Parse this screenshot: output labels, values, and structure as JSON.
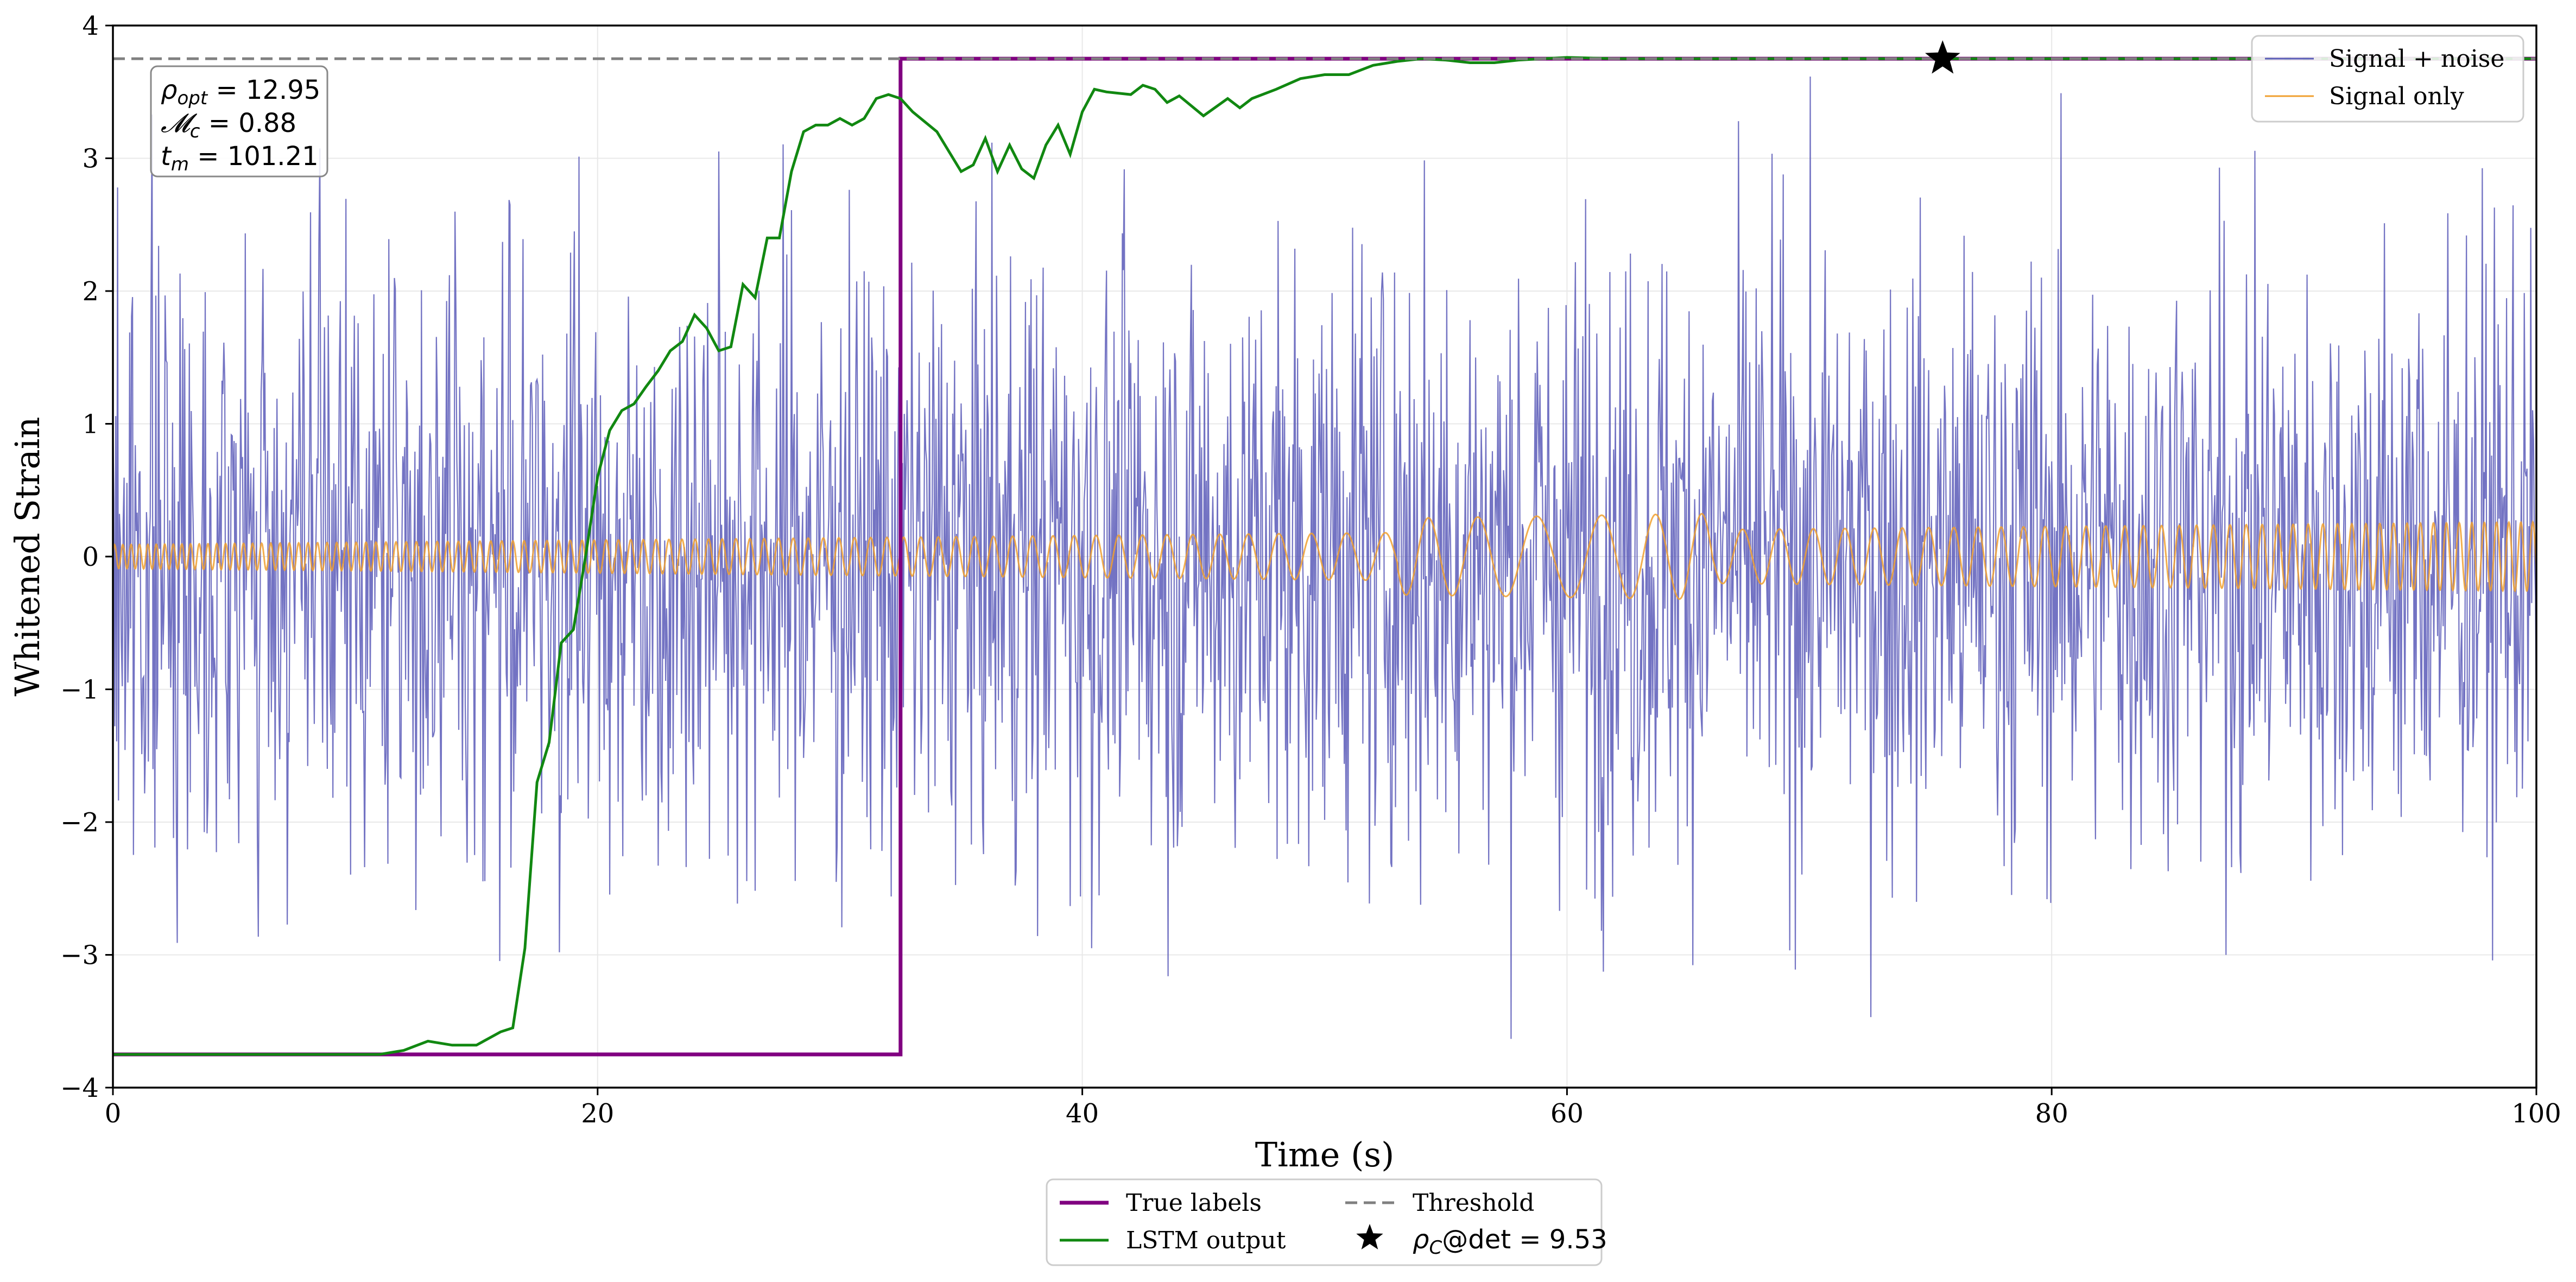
{
  "chart_data": {
    "type": "line",
    "xlabel": "Time (s)",
    "ylabel": "Whitened Strain",
    "xlim": [
      0,
      100
    ],
    "ylim": [
      -4,
      4
    ],
    "grid": true,
    "xticks": [
      0,
      20,
      40,
      60,
      80,
      100
    ],
    "xtick_labels": [
      "0",
      "20",
      "40",
      "60",
      "80",
      "100"
    ],
    "yticks": [
      -4,
      -3,
      -2,
      -1,
      0,
      1,
      2,
      3,
      4
    ],
    "ytick_labels": [
      "−4",
      "−3",
      "−2",
      "−1",
      "0",
      "1",
      "2",
      "3",
      "4"
    ],
    "threshold": 3.75,
    "true_labels": {
      "low": -3.75,
      "high": 3.75,
      "switch_time": 32.5
    },
    "detection_marker": {
      "x": 75.5,
      "y": 3.75,
      "label_prefix": "ρ",
      "label_sub": "C",
      "label_suffix": "@det = 9.53"
    },
    "annotation": {
      "rho_sym": "ρ",
      "rho_sub": "opt",
      "rho_val": " = 12.95",
      "mc_sym": "𝓜",
      "mc_sub": "c",
      "mc_val": " = 0.88",
      "tm_sym": "t",
      "tm_sub": "m",
      "tm_val": " = 101.21"
    },
    "series": [
      {
        "name": "Signal + noise",
        "color": "#5b5bb8",
        "kind": "noise",
        "amplitude": 1.15,
        "n": 2600,
        "seed": 7
      },
      {
        "name": "Signal only",
        "color": "#f0a030",
        "kind": "chirp",
        "amplitude_start": 0.09,
        "amplitude_end": 0.26
      },
      {
        "name": "True labels",
        "color": "#800080"
      },
      {
        "name": "LSTM output",
        "color": "#118811",
        "x": [
          0,
          11,
          12,
          13,
          14,
          15,
          16,
          16.5,
          17,
          17.5,
          18,
          18.5,
          19,
          19.5,
          20,
          20.5,
          21,
          21.5,
          22,
          22.5,
          23,
          23.5,
          24,
          24.5,
          25,
          25.5,
          26,
          26.5,
          27,
          27.5,
          28,
          28.5,
          29,
          29.5,
          30,
          30.5,
          31,
          31.5,
          32,
          32.5,
          33,
          34,
          35,
          35.5,
          36,
          36.5,
          37,
          37.5,
          38,
          38.5,
          39,
          39.5,
          40,
          40.5,
          41,
          42,
          42.5,
          43,
          43.5,
          44,
          45,
          46,
          46.5,
          47,
          48,
          49,
          50,
          51,
          52,
          53,
          54,
          55,
          56,
          57,
          58,
          59,
          60,
          62,
          65,
          70,
          75,
          80,
          90,
          100
        ],
        "y": [
          -3.75,
          -3.75,
          -3.72,
          -3.65,
          -3.68,
          -3.68,
          -3.58,
          -3.55,
          -2.95,
          -1.7,
          -1.4,
          -0.65,
          -0.55,
          0.0,
          0.6,
          0.95,
          1.1,
          1.15,
          1.28,
          1.4,
          1.55,
          1.62,
          1.82,
          1.72,
          1.55,
          1.58,
          2.05,
          1.95,
          2.4,
          2.4,
          2.9,
          3.2,
          3.25,
          3.25,
          3.3,
          3.25,
          3.3,
          3.45,
          3.48,
          3.45,
          3.35,
          3.2,
          2.9,
          2.95,
          3.15,
          2.9,
          3.1,
          2.92,
          2.85,
          3.1,
          3.25,
          3.03,
          3.35,
          3.52,
          3.5,
          3.48,
          3.55,
          3.52,
          3.42,
          3.47,
          3.32,
          3.45,
          3.38,
          3.45,
          3.52,
          3.6,
          3.63,
          3.63,
          3.7,
          3.73,
          3.75,
          3.74,
          3.72,
          3.72,
          3.74,
          3.75,
          3.76,
          3.75,
          3.75,
          3.75,
          3.75,
          3.75,
          3.75,
          3.75
        ]
      },
      {
        "name": "Threshold",
        "color": "#808080"
      }
    ],
    "legend_top_right": [
      "Signal + noise",
      "Signal only"
    ],
    "legend_bottom": [
      "True labels",
      "Threshold",
      "LSTM output"
    ]
  }
}
